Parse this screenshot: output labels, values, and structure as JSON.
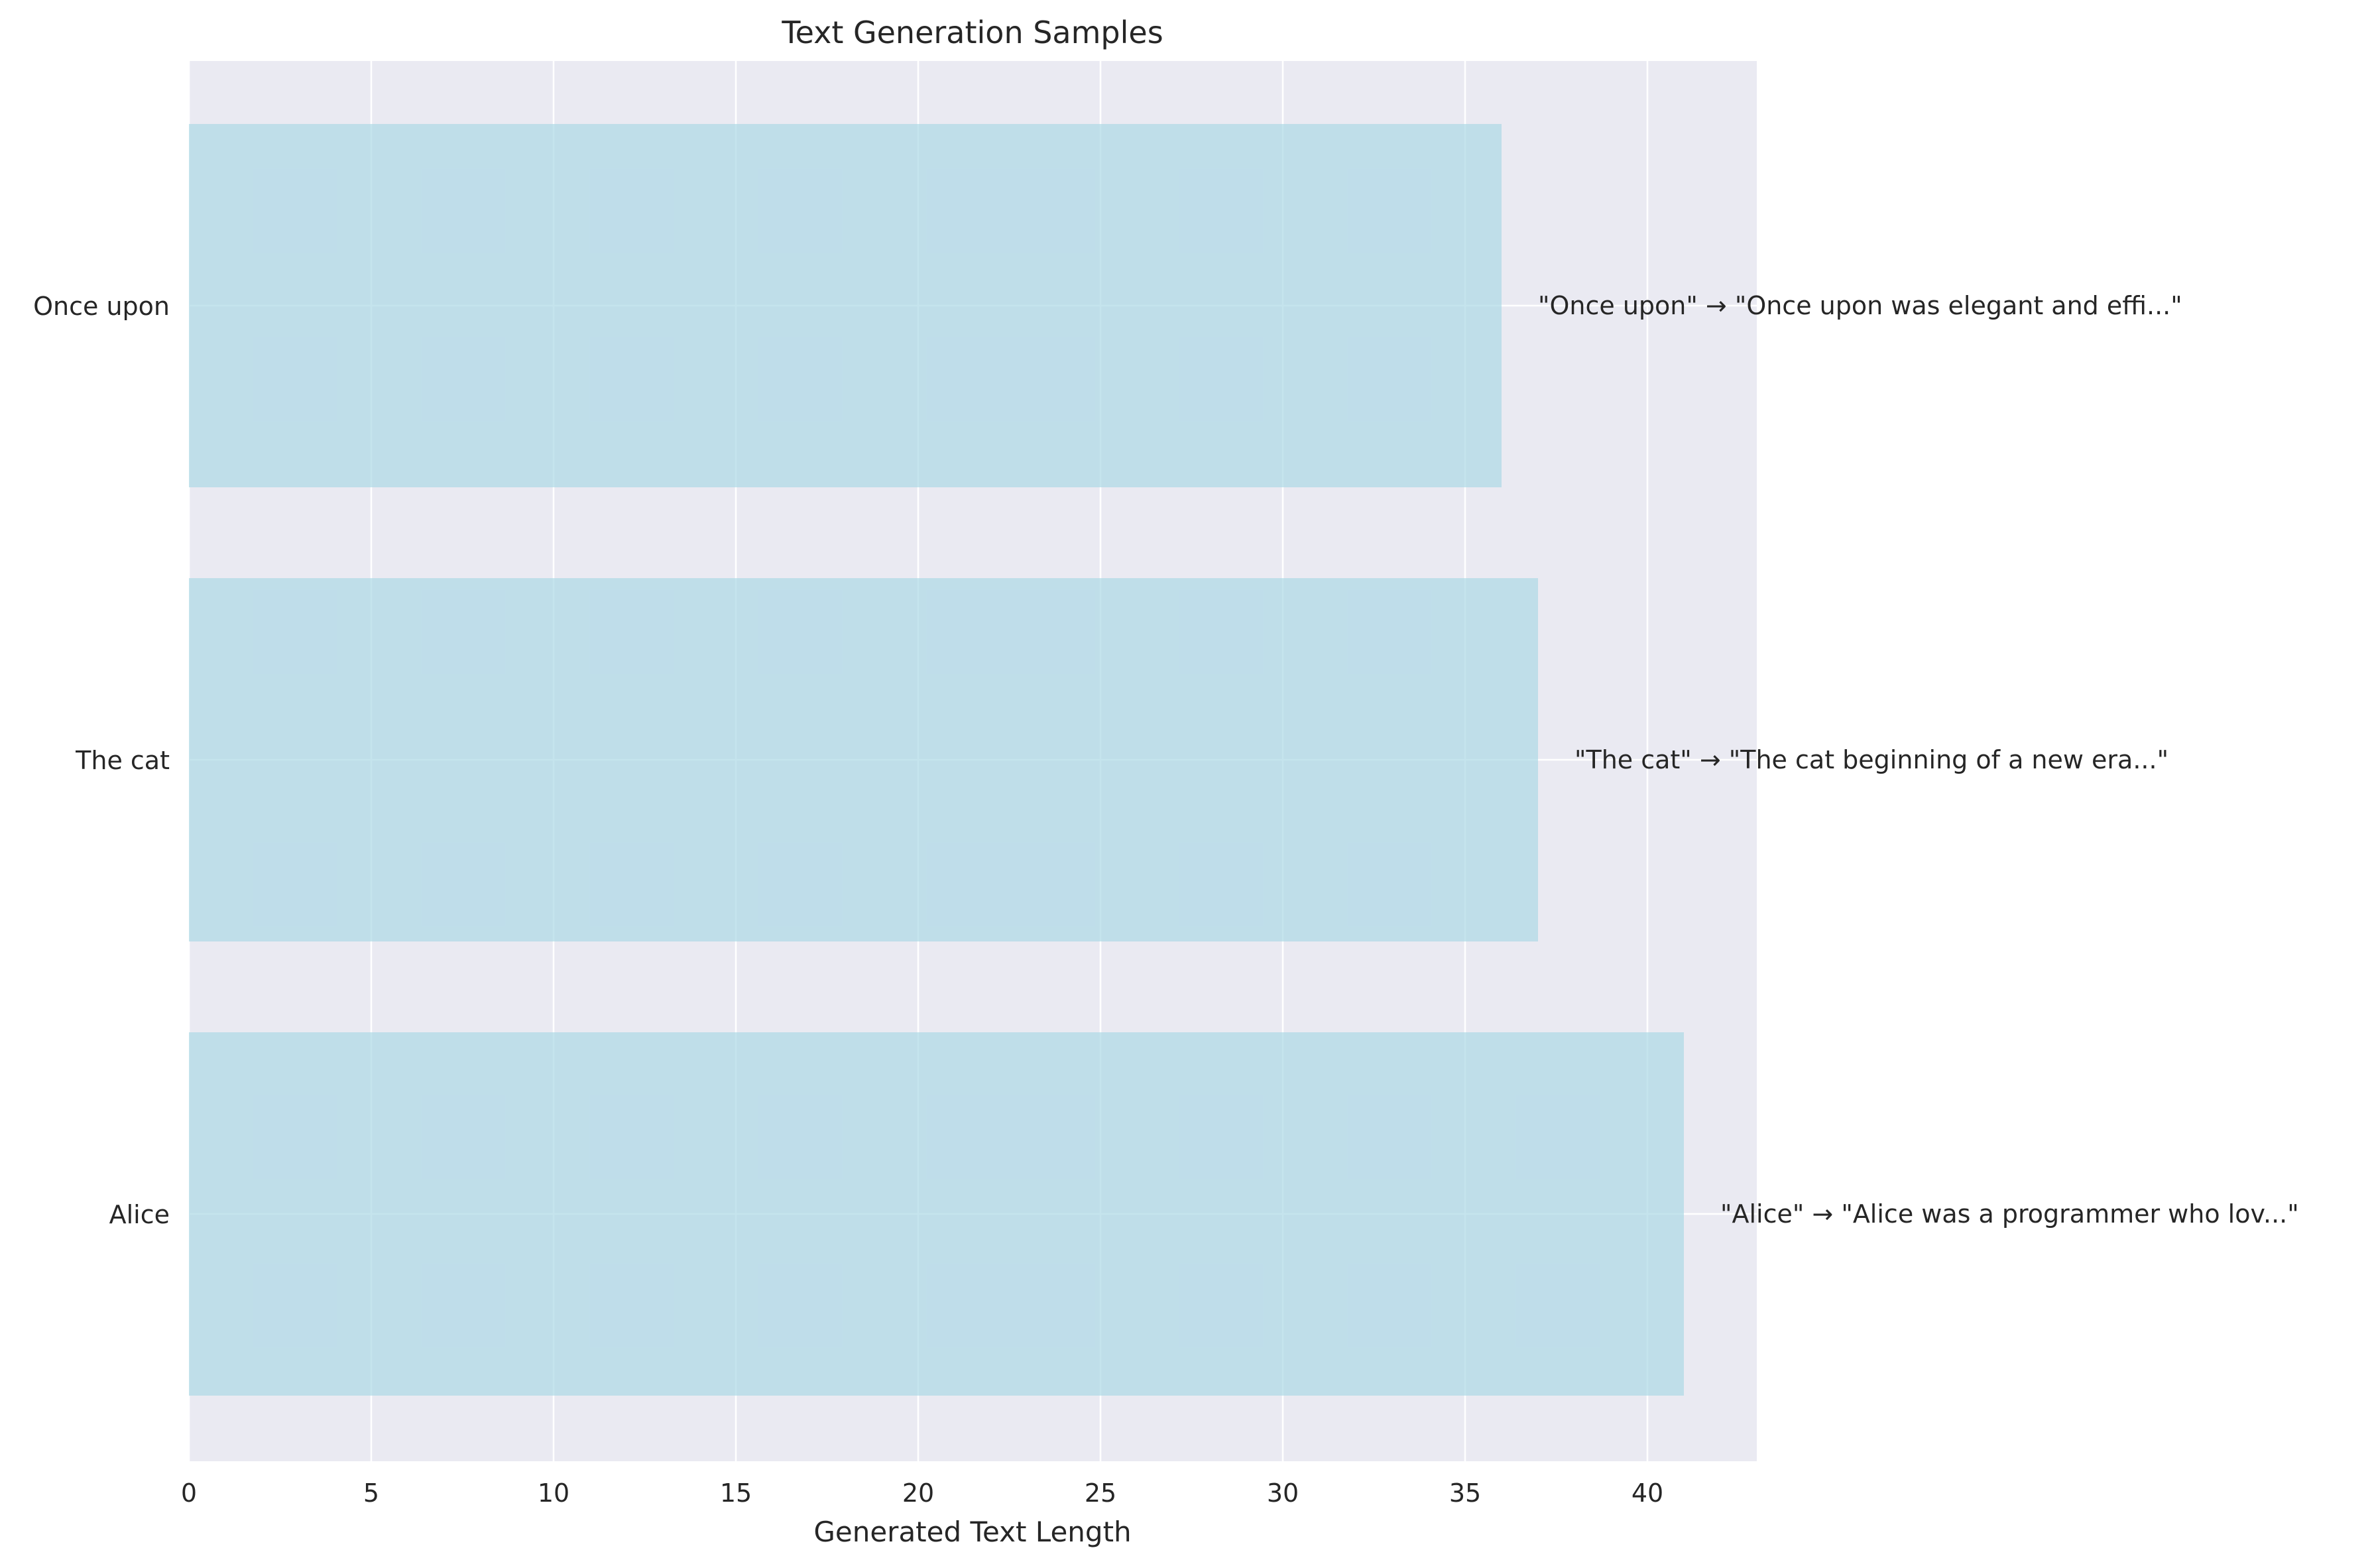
{
  "chart_data": {
    "type": "bar",
    "orientation": "horizontal",
    "title": "Text Generation Samples",
    "xlabel": "Generated Text Length",
    "ylabel": "",
    "xlim": [
      0,
      43
    ],
    "xticks": [
      0,
      5,
      10,
      15,
      20,
      25,
      30,
      35,
      40
    ],
    "grid": true,
    "categories": [
      "Once upon",
      "The cat",
      "Alice"
    ],
    "values": [
      36,
      37,
      41
    ],
    "annotations": [
      "\"Once upon\" → \"Once upon was elegant and effi...\"",
      "\"The cat\" → \"The cat beginning of a new era...\"",
      "\"Alice\" → \"Alice was a programmer who lov...\""
    ],
    "colors": {
      "bar": "#add8e6",
      "plot_background": "#eaeaf2",
      "grid": "#ffffff",
      "text": "#262626"
    }
  }
}
